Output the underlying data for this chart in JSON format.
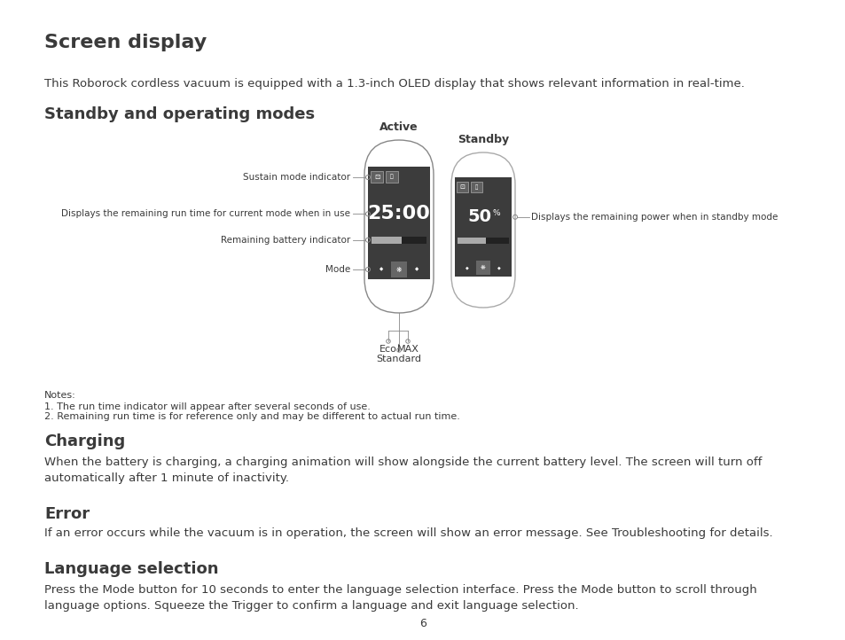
{
  "title": "Screen display",
  "title_fontsize": 16,
  "bg_color": "#ffffff",
  "text_color": "#3a3a3a",
  "intro_text": "This Roborock cordless vacuum is equipped with a 1.3-inch OLED display that shows relevant information in real-time.",
  "intro_fontsize": 9.5,
  "section1_title": "Standby and operating modes",
  "section1_fontsize": 13,
  "active_label": "Active",
  "standby_label": "Standby",
  "left_annot": [
    {
      "text": "Sustain mode indicator",
      "row": 0
    },
    {
      "text": "Displays the remaining run time for current mode when in use",
      "row": 1
    },
    {
      "text": "Remaining battery indicator",
      "row": 2
    },
    {
      "text": "Mode",
      "row": 3
    }
  ],
  "right_annotation": "Displays the remaining power when in standby mode",
  "eco_label": "Eco",
  "max_label": "MAX",
  "standard_label": "Standard",
  "notes": [
    "Notes:",
    "1. The run time indicator will appear after several seconds of use.",
    "2. Remaining run time is for reference only and may be different to actual run time."
  ],
  "notes_fontsize": 8,
  "section2_title": "Charging",
  "section2_fontsize": 13,
  "section2_text": "When the battery is charging, a charging animation will show alongside the current battery level. The screen will turn off\nautomatically after 1 minute of inactivity.",
  "section3_title": "Error",
  "section3_fontsize": 13,
  "section3_text": "If an error occurs while the vacuum is in operation, the screen will show an error message. See Troubleshooting for details.",
  "section4_title": "Language selection",
  "section4_fontsize": 13,
  "section4_text": "Press the Mode button for 10 seconds to enter the language selection interface. Press the Mode button to scroll through\nlanguage options. Squeeze the Trigger to confirm a language and exit language selection.",
  "page_number": "6"
}
